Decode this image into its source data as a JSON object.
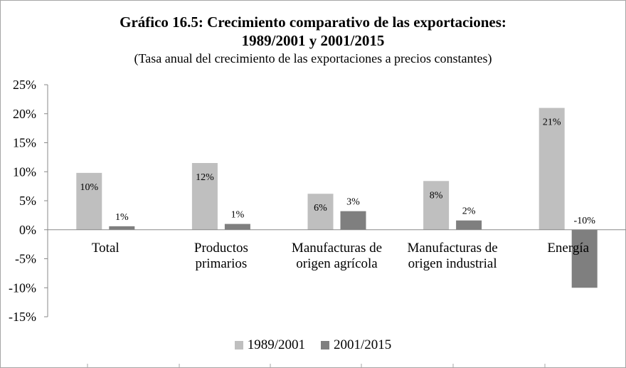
{
  "chart_data": {
    "type": "bar",
    "title": "Gráfico 16.5: Crecimiento comparativo de las exportaciones:",
    "title_line2": "1989/2001 y 2001/2015",
    "subtitle": "(Tasa anual del crecimiento de las exportaciones a precios constantes)",
    "categories": [
      [
        "Total"
      ],
      [
        "Productos",
        "primarios"
      ],
      [
        "Manufacturas de",
        "origen agrícola"
      ],
      [
        "Manufacturas de",
        "origen industrial"
      ],
      [
        "Energía"
      ]
    ],
    "series": [
      {
        "name": "1989/2001",
        "color": "#bfbfbf",
        "values": [
          9.8,
          11.5,
          6.2,
          8.4,
          21.0
        ],
        "labels": [
          "10%",
          "12%",
          "6%",
          "8%",
          "21%"
        ]
      },
      {
        "name": "2001/2015",
        "color": "#7f7f7f",
        "values": [
          0.6,
          1.0,
          3.2,
          1.6,
          -10.0
        ],
        "labels": [
          "1%",
          "1%",
          "3%",
          "2%",
          "-10%"
        ]
      }
    ],
    "ylim": [
      -15,
      25
    ],
    "yticks": [
      25,
      20,
      15,
      10,
      5,
      0,
      -5,
      -10,
      -15
    ],
    "ytick_labels": [
      "25%",
      "20%",
      "15%",
      "10%",
      "5%",
      "0%",
      "-5%",
      "-10%",
      "-15%"
    ],
    "xlabel": "",
    "ylabel": "",
    "grid": false,
    "legend_position": "bottom"
  }
}
